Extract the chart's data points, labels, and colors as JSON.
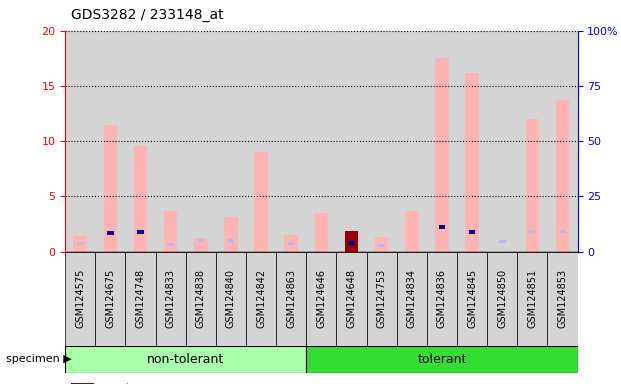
{
  "title": "GDS3282 / 233148_at",
  "samples": [
    "GSM124575",
    "GSM124675",
    "GSM124748",
    "GSM124833",
    "GSM124838",
    "GSM124840",
    "GSM124842",
    "GSM124863",
    "GSM124646",
    "GSM124648",
    "GSM124753",
    "GSM124834",
    "GSM124836",
    "GSM124845",
    "GSM124850",
    "GSM124851",
    "GSM124853"
  ],
  "n_nontolerant": 8,
  "value_absent": [
    1.4,
    11.5,
    9.6,
    3.7,
    1.2,
    3.1,
    9.0,
    1.5,
    3.5,
    null,
    1.3,
    3.7,
    17.5,
    16.2,
    null,
    12.0,
    13.7
  ],
  "rank_absent": [
    3.5,
    null,
    null,
    3.2,
    5.0,
    4.8,
    null,
    3.5,
    null,
    null,
    2.6,
    null,
    null,
    9.0,
    4.5,
    8.8,
    9.0
  ],
  "count_vals": [
    null,
    null,
    null,
    null,
    null,
    null,
    null,
    null,
    null,
    1.9,
    null,
    null,
    null,
    null,
    null,
    null,
    null
  ],
  "rank_present": [
    null,
    8.3,
    8.7,
    null,
    null,
    null,
    null,
    null,
    null,
    3.7,
    null,
    null,
    11.0,
    9.0,
    null,
    null,
    null
  ],
  "ylim_left": [
    0,
    20
  ],
  "ylim_right": [
    0,
    100
  ],
  "yticks_left": [
    0,
    5,
    10,
    15,
    20
  ],
  "yticks_right": [
    0,
    25,
    50,
    75,
    100
  ],
  "ytick_labels_right": [
    "0",
    "25",
    "50",
    "75",
    "100%"
  ],
  "color_value_absent": "#ffb3b3",
  "color_rank_absent": "#b8b8f0",
  "color_count": "#990000",
  "color_rank_present": "#000099",
  "bg_sample": "#d4d4d4",
  "bg_nontolerant": "#aaffaa",
  "bg_tolerant": "#33dd33",
  "title_fontsize": 10,
  "tick_fontsize": 8,
  "label_fontsize": 8,
  "legend_fontsize": 8
}
